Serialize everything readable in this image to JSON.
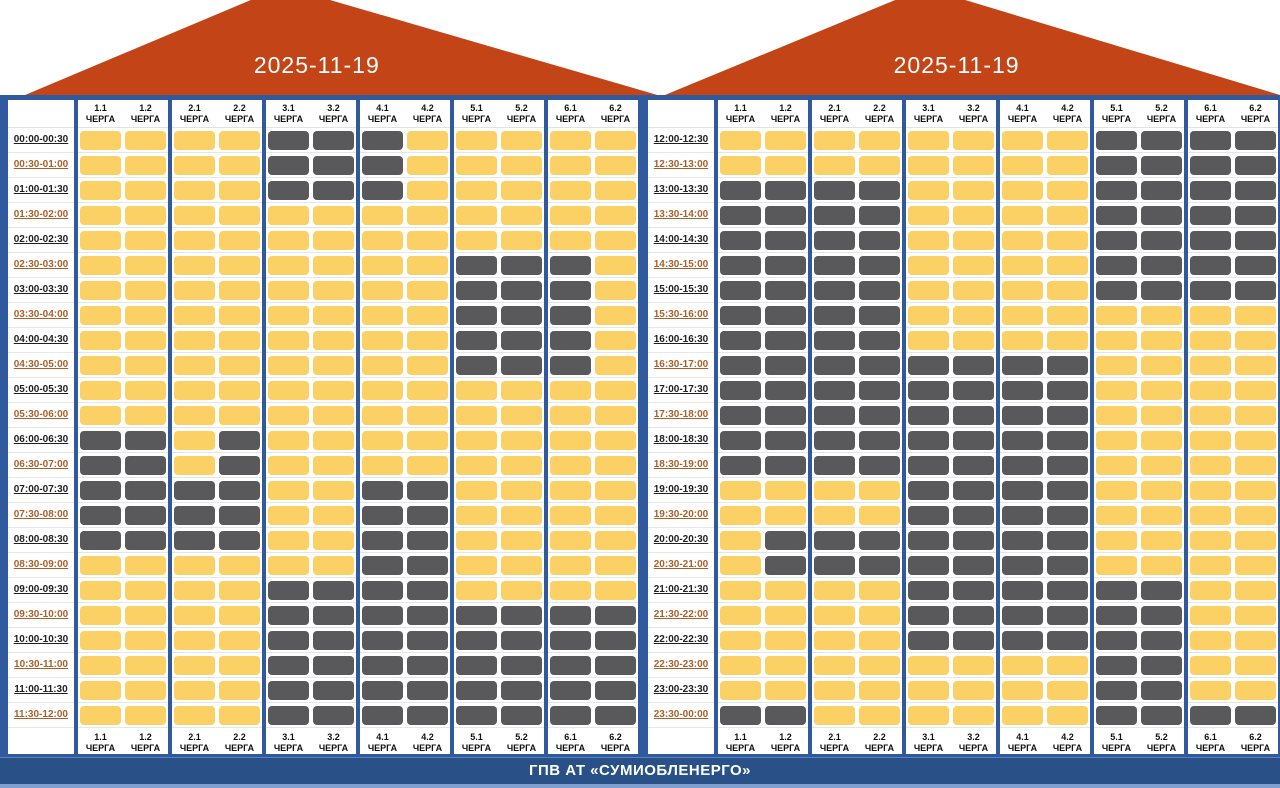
{
  "banners": {
    "left_date": "2025-11-19",
    "right_date": "2025-11-19"
  },
  "footer": {
    "text": "ГПВ АТ «СУМИОБЛЕНЕРГО»"
  },
  "queue_word": "ЧЕРГА",
  "queues": [
    "1.1",
    "1.2",
    "2.1",
    "2.2",
    "3.1",
    "3.2",
    "4.1",
    "4.2",
    "5.1",
    "5.2",
    "6.1",
    "6.2"
  ],
  "colors": {
    "power_on": "#FBD166",
    "power_off": "#59595B",
    "frame_blue": "#315A9E",
    "footer_blue": "#2A5088",
    "bottom_strip_blue": "#7E9FD0",
    "banner_orange": "#C34517",
    "time_label_dark": "#1F1F1F",
    "time_label_alt": "#A9612C"
  },
  "chart_data": [
    {
      "type": "heatmap",
      "title": "2025-11-19",
      "x_categories": [
        "1.1 ЧЕРГА",
        "1.2 ЧЕРГА",
        "2.1 ЧЕРГА",
        "2.2 ЧЕРГА",
        "3.1 ЧЕРГА",
        "3.2 ЧЕРГА",
        "4.1 ЧЕРГА",
        "4.2 ЧЕРГА",
        "5.1 ЧЕРГА",
        "5.2 ЧЕРГА",
        "6.1 ЧЕРГА",
        "6.2 ЧЕРГА"
      ],
      "y_categories": [
        "00:00-00:30",
        "00:30-01:00",
        "01:00-01:30",
        "01:30-02:00",
        "02:00-02:30",
        "02:30-03:00",
        "03:00-03:30",
        "03:30-04:00",
        "04:00-04:30",
        "04:30-05:00",
        "05:00-05:30",
        "05:30-06:00",
        "06:00-06:30",
        "06:30-07:00",
        "07:00-07:30",
        "07:30-08:00",
        "08:00-08:30",
        "08:30-09:00",
        "09:00-09:30",
        "09:30-10:00",
        "10:00-10:30",
        "10:30-11:00",
        "11:00-11:30",
        "11:30-12:00"
      ],
      "values_encoding": {
        "Y": "power on (yellow cell)",
        "G": "power off (gray cell)"
      },
      "rows": [
        "YYYYGGGYYYYY",
        "YYYYGGGYYYYY",
        "YYYYGGGYYYYY",
        "YYYYYYYYYYYY",
        "YYYYYYYYYYYY",
        "YYYYYYYYGGGY",
        "YYYYYYYYGGGY",
        "YYYYYYYYGGGY",
        "YYYYYYYYGGGY",
        "YYYYYYYYGGGY",
        "YYYYYYYYYYYY",
        "YYYYYYYYYYYY",
        "GGYGYYYYYYYY",
        "GGYGYYYYYYYY",
        "GGGGYYGGYYYY",
        "GGGGYYGGYYYY",
        "GGGGYYGGYYYY",
        "YYYYYYGGYYYY",
        "YYYYGGGGYYYY",
        "YYYYGGGGGGGG",
        "YYYYGGGGGGGG",
        "YYYYGGGGGGGG",
        "YYYYGGGGGGGG",
        "YYYYGGGGGGGG"
      ]
    },
    {
      "type": "heatmap",
      "title": "2025-11-19",
      "x_categories": [
        "1.1 ЧЕРГА",
        "1.2 ЧЕРГА",
        "2.1 ЧЕРГА",
        "2.2 ЧЕРГА",
        "3.1 ЧЕРГА",
        "3.2 ЧЕРГА",
        "4.1 ЧЕРГА",
        "4.2 ЧЕРГА",
        "5.1 ЧЕРГА",
        "5.2 ЧЕРГА",
        "6.1 ЧЕРГА",
        "6.2 ЧЕРГА"
      ],
      "y_categories": [
        "12:00-12:30",
        "12:30-13:00",
        "13:00-13:30",
        "13:30-14:00",
        "14:00-14:30",
        "14:30-15:00",
        "15:00-15:30",
        "15:30-16:00",
        "16:00-16:30",
        "16:30-17:00",
        "17:00-17:30",
        "17:30-18:00",
        "18:00-18:30",
        "18:30-19:00",
        "19:00-19:30",
        "19:30-20:00",
        "20:00-20:30",
        "20:30-21:00",
        "21:00-21:30",
        "21:30-22:00",
        "22:00-22:30",
        "22:30-23:00",
        "23:00-23:30",
        "23:30-00:00"
      ],
      "values_encoding": {
        "Y": "power on (yellow cell)",
        "G": "power off (gray cell)"
      },
      "rows": [
        "YYYYYYYYGGGG",
        "YYYYYYYYGGGG",
        "GGGGYYYYGGGG",
        "GGGGYYYYGGGG",
        "GGGGYYYYGGGG",
        "GGGGYYYYGGGG",
        "GGGGYYYYGGGG",
        "GGGGYYYYYYYY",
        "GGGGYYYYYYYY",
        "GGGGGGGGYYYY",
        "GGGGGGGGYYYY",
        "GGGGGGGGYYYY",
        "GGGGGGGGYYYY",
        "GGGGGGGGYYYY",
        "YYYYGGGGYYYY",
        "YYYYGGGGYYYY",
        "YGGGGGGGYYYY",
        "YGGGGGGGYYYY",
        "YYYYGGGGGGYY",
        "YYYYGGGGGGYY",
        "YYYYGGGGGGYY",
        "YYYYYYYYGGYY",
        "YYYYYYYYGGYY",
        "GGYYYYYYGGGG"
      ]
    }
  ]
}
